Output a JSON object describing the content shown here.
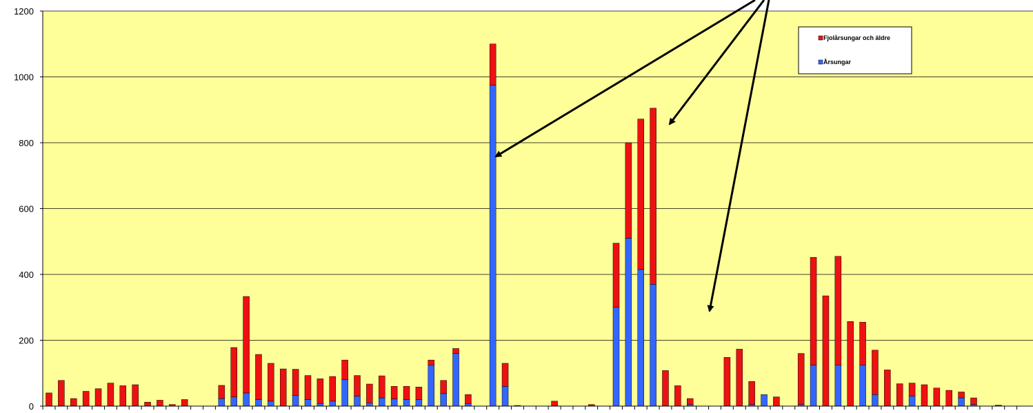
{
  "chart_data": {
    "type": "bar",
    "stacked": true,
    "ylim": [
      0,
      1200
    ],
    "y_ticks": [
      "0",
      "200",
      "400",
      "600",
      "800",
      "1000",
      "1200"
    ],
    "y_tick_values": [
      0,
      200,
      400,
      600,
      800,
      1000,
      1200
    ],
    "grid": true,
    "legend_position": "top-right",
    "plot_background": "#ffff99",
    "category_count": 80,
    "series": [
      {
        "name": "Årsungar",
        "color": "#3366ff",
        "values": [
          0,
          0,
          0,
          0,
          0,
          0,
          0,
          0,
          0,
          0,
          0,
          0,
          0,
          0,
          23,
          28,
          40,
          20,
          15,
          0,
          32,
          20,
          8,
          15,
          80,
          30,
          10,
          25,
          22,
          20,
          20,
          125,
          38,
          160,
          8,
          0,
          975,
          60,
          0,
          0,
          0,
          0,
          0,
          0,
          0,
          0,
          300,
          510,
          415,
          370,
          0,
          0,
          5,
          0,
          0,
          0,
          0,
          5,
          35,
          0,
          0,
          5,
          125,
          0,
          125,
          0,
          125,
          35,
          0,
          0,
          30,
          0,
          0,
          0,
          25,
          5,
          0,
          0,
          0,
          0
        ]
      },
      {
        "name": "Fjolårsungar och äldre",
        "color": "#ee1111",
        "values": [
          40,
          78,
          23,
          45,
          53,
          70,
          62,
          65,
          12,
          18,
          5,
          20,
          0,
          0,
          40,
          150,
          293,
          137,
          115,
          113,
          80,
          73,
          75,
          75,
          60,
          63,
          57,
          67,
          38,
          40,
          38,
          15,
          40,
          15,
          27,
          0,
          125,
          70,
          2,
          0,
          0,
          15,
          0,
          0,
          5,
          0,
          195,
          290,
          457,
          535,
          108,
          62,
          18,
          0,
          0,
          148,
          173,
          70,
          0,
          28,
          0,
          155,
          327,
          335,
          330,
          257,
          130,
          135,
          110,
          68,
          40,
          65,
          55,
          48,
          18,
          20,
          0,
          3,
          0,
          0
        ]
      }
    ],
    "legend": [
      "Fjolårsungar och äldre",
      "Årsungar"
    ]
  }
}
